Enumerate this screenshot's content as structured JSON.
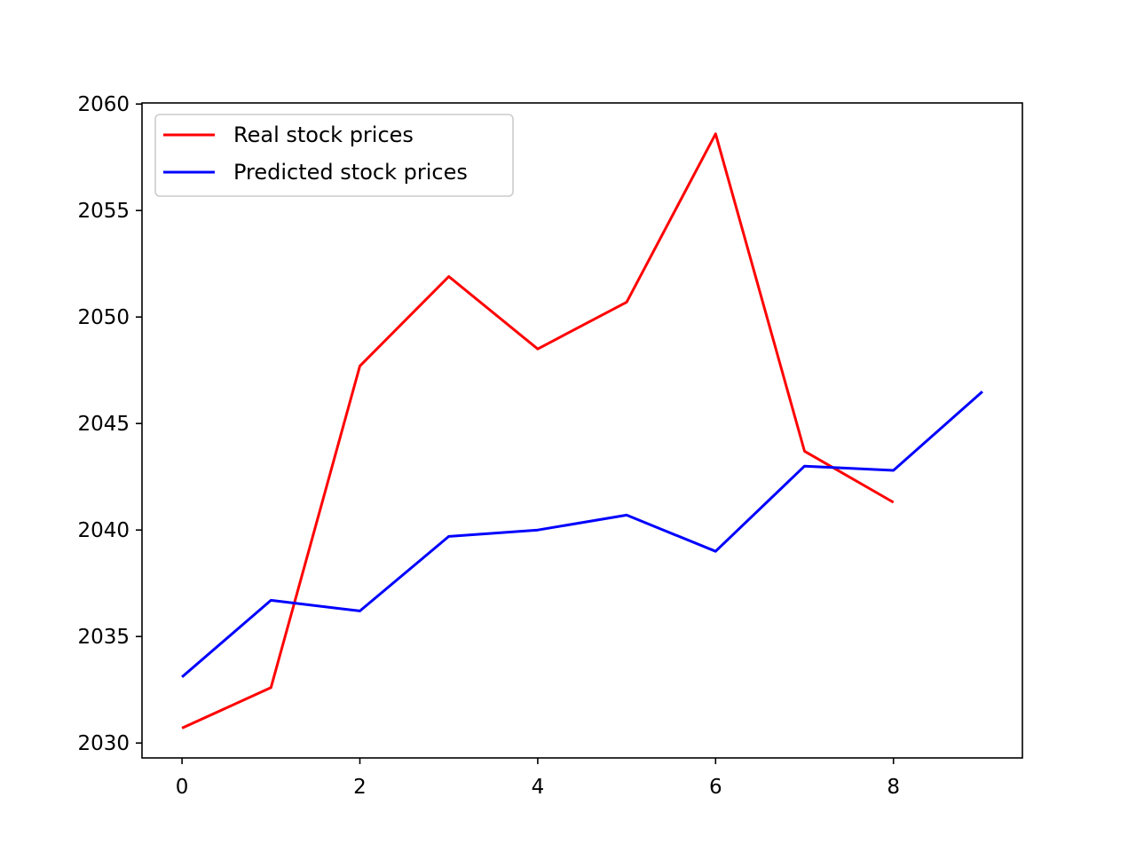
{
  "chart_data": {
    "type": "line",
    "title": "",
    "xlabel": "",
    "ylabel": "",
    "xlim": [
      -0.45,
      9.45
    ],
    "ylim": [
      2029.3,
      2060.05
    ],
    "xticks": [
      0,
      2,
      4,
      6,
      8
    ],
    "yticks": [
      2030,
      2035,
      2040,
      2045,
      2050,
      2055,
      2060
    ],
    "grid": false,
    "legend_position": "upper-left",
    "series": [
      {
        "name": "Real stock prices",
        "color": "#ff0000",
        "x": [
          0,
          1,
          2,
          3,
          4,
          5,
          6,
          7,
          8
        ],
        "y": [
          2030.7,
          2032.6,
          2047.7,
          2051.9,
          2048.5,
          2050.7,
          2058.6,
          2043.7,
          2041.3
        ]
      },
      {
        "name": "Predicted stock prices",
        "color": "#0000ff",
        "x": [
          0,
          1,
          2,
          3,
          4,
          5,
          6,
          7,
          8,
          9
        ],
        "y": [
          2033.1,
          2036.7,
          2036.2,
          2039.7,
          2040.0,
          2040.7,
          2039.0,
          2043.0,
          2042.8,
          2046.5
        ]
      }
    ]
  }
}
